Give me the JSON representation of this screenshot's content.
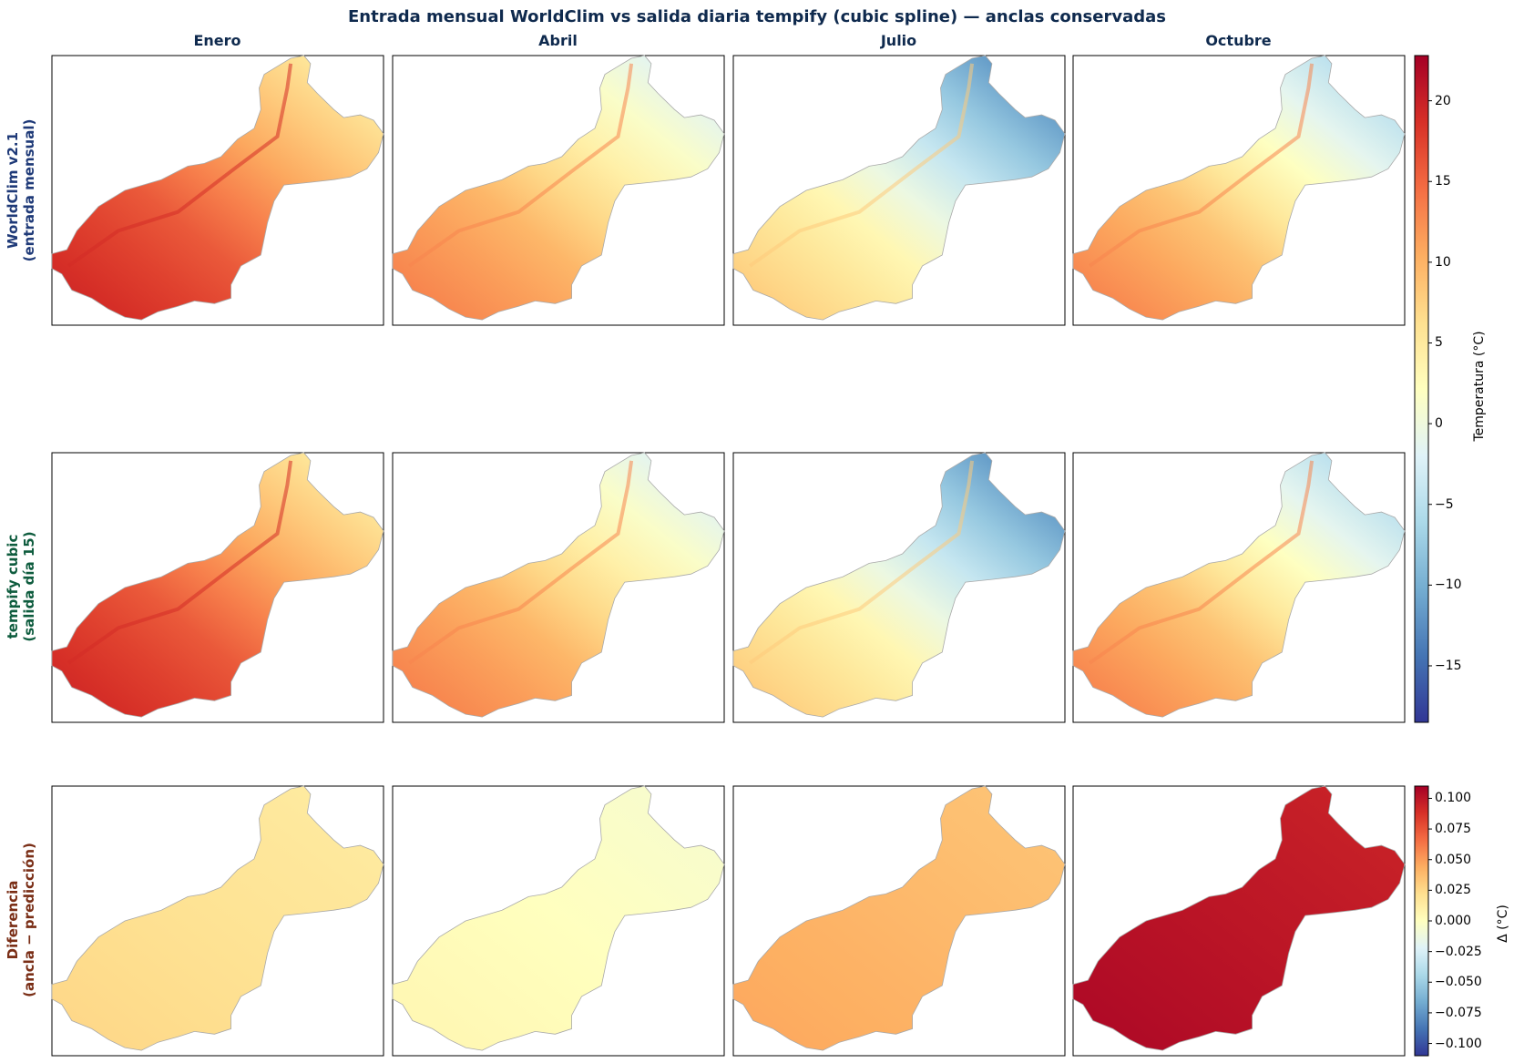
{
  "title": "Entrada mensual WorldClim vs salida diaria tempify (cubic spline) — anclas conservadas",
  "columns": [
    "Enero",
    "Abril",
    "Julio",
    "Octubre"
  ],
  "rows": [
    {
      "label_line1": "WorldClim v2.1",
      "label_line2": "(entrada mensual)",
      "color": "#1f3a78"
    },
    {
      "label_line1": "tempify cubic",
      "label_line2": "(salida día 15)",
      "color": "#0e5c3e"
    },
    {
      "label_line1": "Diferencia",
      "label_line2": "(ancla − predicción)",
      "color": "#7a2e16"
    }
  ],
  "chart_data": {
    "type": "heatmap",
    "title": "Entrada mensual WorldClim vs salida diaria tempify (cubic spline) — anclas conservadas",
    "panels": [
      {
        "row": "WorldClim v2.1 (entrada mensual)",
        "month": "Enero",
        "approx_range_C": [
          3,
          20
        ]
      },
      {
        "row": "WorldClim v2.1 (entrada mensual)",
        "month": "Abril",
        "approx_range_C": [
          -4,
          14
        ]
      },
      {
        "row": "WorldClim v2.1 (entrada mensual)",
        "month": "Julio",
        "approx_range_C": [
          -15,
          9
        ]
      },
      {
        "row": "WorldClim v2.1 (entrada mensual)",
        "month": "Octubre",
        "approx_range_C": [
          -8,
          14
        ]
      },
      {
        "row": "tempify cubic (salida día 15)",
        "month": "Enero",
        "approx_range_C": [
          3,
          20
        ]
      },
      {
        "row": "tempify cubic (salida día 15)",
        "month": "Abril",
        "approx_range_C": [
          -4,
          14
        ]
      },
      {
        "row": "tempify cubic (salida día 15)",
        "month": "Julio",
        "approx_range_C": [
          -15,
          9
        ]
      },
      {
        "row": "tempify cubic (salida día 15)",
        "month": "Octubre",
        "approx_range_C": [
          -8,
          14
        ]
      },
      {
        "row": "Diferencia (ancla − predicción)",
        "month": "Enero",
        "approx_delta_C": 0.02
      },
      {
        "row": "Diferencia (ancla − predicción)",
        "month": "Abril",
        "approx_delta_C": 0.0
      },
      {
        "row": "Diferencia (ancla − predicción)",
        "month": "Julio",
        "approx_delta_C": 0.04
      },
      {
        "row": "Diferencia (ancla − predicción)",
        "month": "Octubre",
        "approx_delta_C": 0.1
      }
    ],
    "colorbars": [
      {
        "label": "Temperatura (°C)",
        "range": [
          -18.5,
          22.8
        ],
        "cmap": "RdYlBu_r",
        "ticks": [
          -15,
          -10,
          -5,
          0,
          5,
          10,
          15,
          20
        ],
        "tick_labels": [
          "−15",
          "−10",
          "−5",
          "0",
          "5",
          "10",
          "15",
          "20"
        ]
      },
      {
        "label": "Δ (°C)",
        "range": [
          -0.11,
          0.11
        ],
        "cmap": "RdYlBu_r",
        "ticks": [
          -0.1,
          -0.075,
          -0.05,
          -0.025,
          0.0,
          0.025,
          0.05,
          0.075,
          0.1
        ],
        "tick_labels": [
          "−0.100",
          "−0.075",
          "−0.050",
          "−0.025",
          "0.000",
          "0.025",
          "0.050",
          "0.075",
          "0.100"
        ]
      }
    ]
  }
}
